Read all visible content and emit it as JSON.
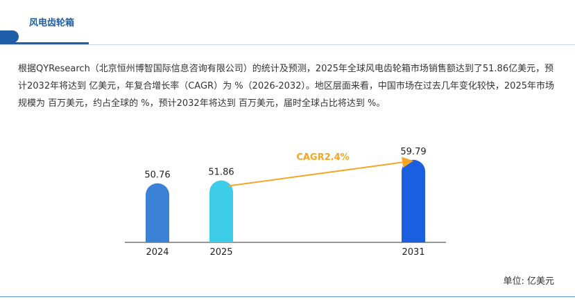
{
  "header": {
    "title": "风电齿轮箱"
  },
  "description": "根据QYResearch（北京恒州博智国际信息咨询有限公司）的统计及预测，2025年全球风电齿轮箱市场销售额达到了51.86亿美元，预计2032年将达到 亿美元，年复合增长率（CAGR）为 %（2026-2032）。地区层面来看，中国市场在过去几年变化较快，2025年市场规模为 百万美元，约占全球的 %，预计2032年将达到 百万美元，届时全球占比将达到 %。",
  "unit_label": "单位: 亿美元",
  "chart_data": {
    "type": "bar",
    "categories": [
      "2024",
      "2025",
      "2031"
    ],
    "values": [
      50.76,
      51.86,
      59.79
    ],
    "value_labels": [
      "50.76",
      "51.86",
      "59.79"
    ],
    "bar_colors": [
      "#3b82d6",
      "#3ecde8",
      "#1a5fe0"
    ],
    "annotation": {
      "text": "CAGR2.4%",
      "from": "2025",
      "to": "2031",
      "color": "#f5a623"
    },
    "ylim": [
      0,
      65
    ]
  }
}
